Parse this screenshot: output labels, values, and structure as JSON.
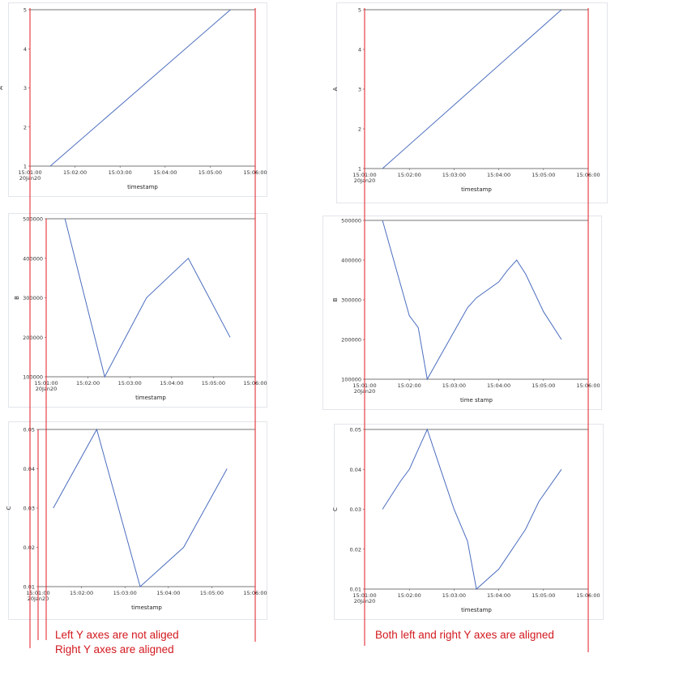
{
  "colors": {
    "series": "#4b6dbf",
    "guides": "#e01b24",
    "caption": "#d2191f",
    "frame": "#555555"
  },
  "captions": {
    "left_line1": "Left Y axes are not aliged",
    "left_line2": "Right Y axes are aligned",
    "right_line1": "Both left and right Y axes are aligned"
  },
  "chart_data": [
    {
      "type": "line",
      "group": "left",
      "xlabel": "timestamp",
      "ylabel": "A",
      "xticks": [
        "15:01:00\n20Jan20",
        "15:02:00",
        "15:03:00",
        "15:04:00",
        "15:05:00",
        "15:06:00"
      ],
      "yticks": [
        "1",
        "2",
        "3",
        "4",
        "5"
      ],
      "xlim": [
        0,
        5
      ],
      "ylim": [
        1,
        5
      ],
      "x": [
        0.45,
        4.45
      ],
      "y": [
        1,
        5
      ]
    },
    {
      "type": "line",
      "group": "left",
      "xlabel": "timestamp",
      "ylabel": "B",
      "xticks": [
        "15:01:00\n20Jan20",
        "15:02:00",
        "15:03:00",
        "15:04:00",
        "15:05:00",
        "15:06:00"
      ],
      "yticks": [
        "100000",
        "200000",
        "300000",
        "400000",
        "500000"
      ],
      "xlim": [
        0,
        5
      ],
      "ylim": [
        100000,
        500000
      ],
      "x": [
        0.45,
        1.4,
        2.4,
        3.4,
        4.4
      ],
      "y": [
        500000,
        100000,
        300000,
        400000,
        200000
      ]
    },
    {
      "type": "line",
      "group": "left",
      "xlabel": "timestamp",
      "ylabel": "C",
      "xticks": [
        "15:01:00\n20Jan20",
        "15:02:00",
        "15:03:00",
        "15:04:00",
        "15:05:00",
        "15:06:00"
      ],
      "yticks": [
        "0.01",
        "0.02",
        "0.03",
        "0.04",
        "0.05"
      ],
      "xlim": [
        0,
        5
      ],
      "ylim": [
        0.01,
        0.05
      ],
      "x": [
        0.35,
        1.35,
        2.35,
        3.35,
        4.35
      ],
      "y": [
        0.03,
        0.05,
        0.01,
        0.02,
        0.04
      ]
    },
    {
      "type": "line",
      "group": "right",
      "xlabel": "timestamp",
      "ylabel": "A",
      "xticks": [
        "15:01:00\n20Jan20",
        "15:02:00",
        "15:03:00",
        "15:04:00",
        "15:05:00",
        "15:06:00"
      ],
      "yticks": [
        "1",
        "2",
        "3",
        "4",
        "5"
      ],
      "xlim": [
        0,
        5
      ],
      "ylim": [
        1,
        5
      ],
      "x": [
        0.4,
        4.4
      ],
      "y": [
        1,
        5
      ]
    },
    {
      "type": "line",
      "group": "right",
      "xlabel": "time stamp",
      "ylabel": "B",
      "xticks": [
        "15:01:00\n20Jan20",
        "15:02:00",
        "15:03:00",
        "15:04:00",
        "15:05:00",
        "15:06:00"
      ],
      "yticks": [
        "100000",
        "200000",
        "300000",
        "400000",
        "500000"
      ],
      "xlim": [
        0,
        5
      ],
      "ylim": [
        100000,
        500000
      ],
      "x": [
        0.4,
        0.7,
        1.0,
        1.2,
        1.4,
        1.7,
        2.0,
        2.3,
        2.5,
        3.0,
        3.2,
        3.4,
        3.6,
        4.0,
        4.4
      ],
      "y": [
        500000,
        380000,
        260000,
        230000,
        100000,
        160000,
        220000,
        280000,
        305000,
        345000,
        375000,
        400000,
        365000,
        270000,
        200000
      ]
    },
    {
      "type": "line",
      "group": "right",
      "xlabel": "timestamp",
      "ylabel": "C",
      "xticks": [
        "15:01:00\n20Jan20",
        "15:02:00",
        "15:03:00",
        "15:04:00",
        "15:05:00",
        "15:06:00"
      ],
      "yticks": [
        "0.01",
        "0.02",
        "0.03",
        "0.04",
        "0.05"
      ],
      "xlim": [
        0,
        5
      ],
      "ylim": [
        0.01,
        0.05
      ],
      "x": [
        0.4,
        0.8,
        1.0,
        1.2,
        1.4,
        1.7,
        2.0,
        2.3,
        2.5,
        3.0,
        3.3,
        3.6,
        3.9,
        4.4
      ],
      "y": [
        0.03,
        0.037,
        0.04,
        0.045,
        0.05,
        0.04,
        0.03,
        0.022,
        0.01,
        0.015,
        0.02,
        0.025,
        0.032,
        0.04
      ]
    }
  ]
}
